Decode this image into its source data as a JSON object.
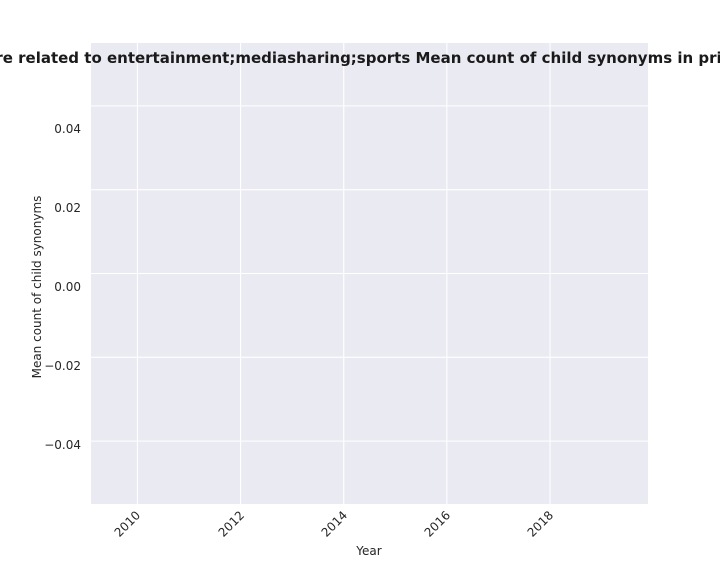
{
  "chart_data": {
    "type": "line",
    "title": "ies are related to entertainment;mediasharing;sports Mean count of child synonyms in privacy",
    "xlabel": "Year",
    "ylabel": "Mean count of child synonyms",
    "x_ticks": [
      "2010",
      "2012",
      "2014",
      "2016",
      "2018"
    ],
    "y_ticks": [
      "0.04",
      "0.02",
      "0.00",
      "−0.02",
      "−0.04"
    ],
    "xlim": [
      2009.1,
      2019.9
    ],
    "ylim": [
      -0.055,
      0.055
    ],
    "grid": true,
    "legend": "none",
    "colors": {
      "plot_background": "#eaeaf2",
      "grid": "#ffffff",
      "text": "#262626"
    },
    "series": [
      {
        "x": [],
        "y": []
      }
    ]
  }
}
